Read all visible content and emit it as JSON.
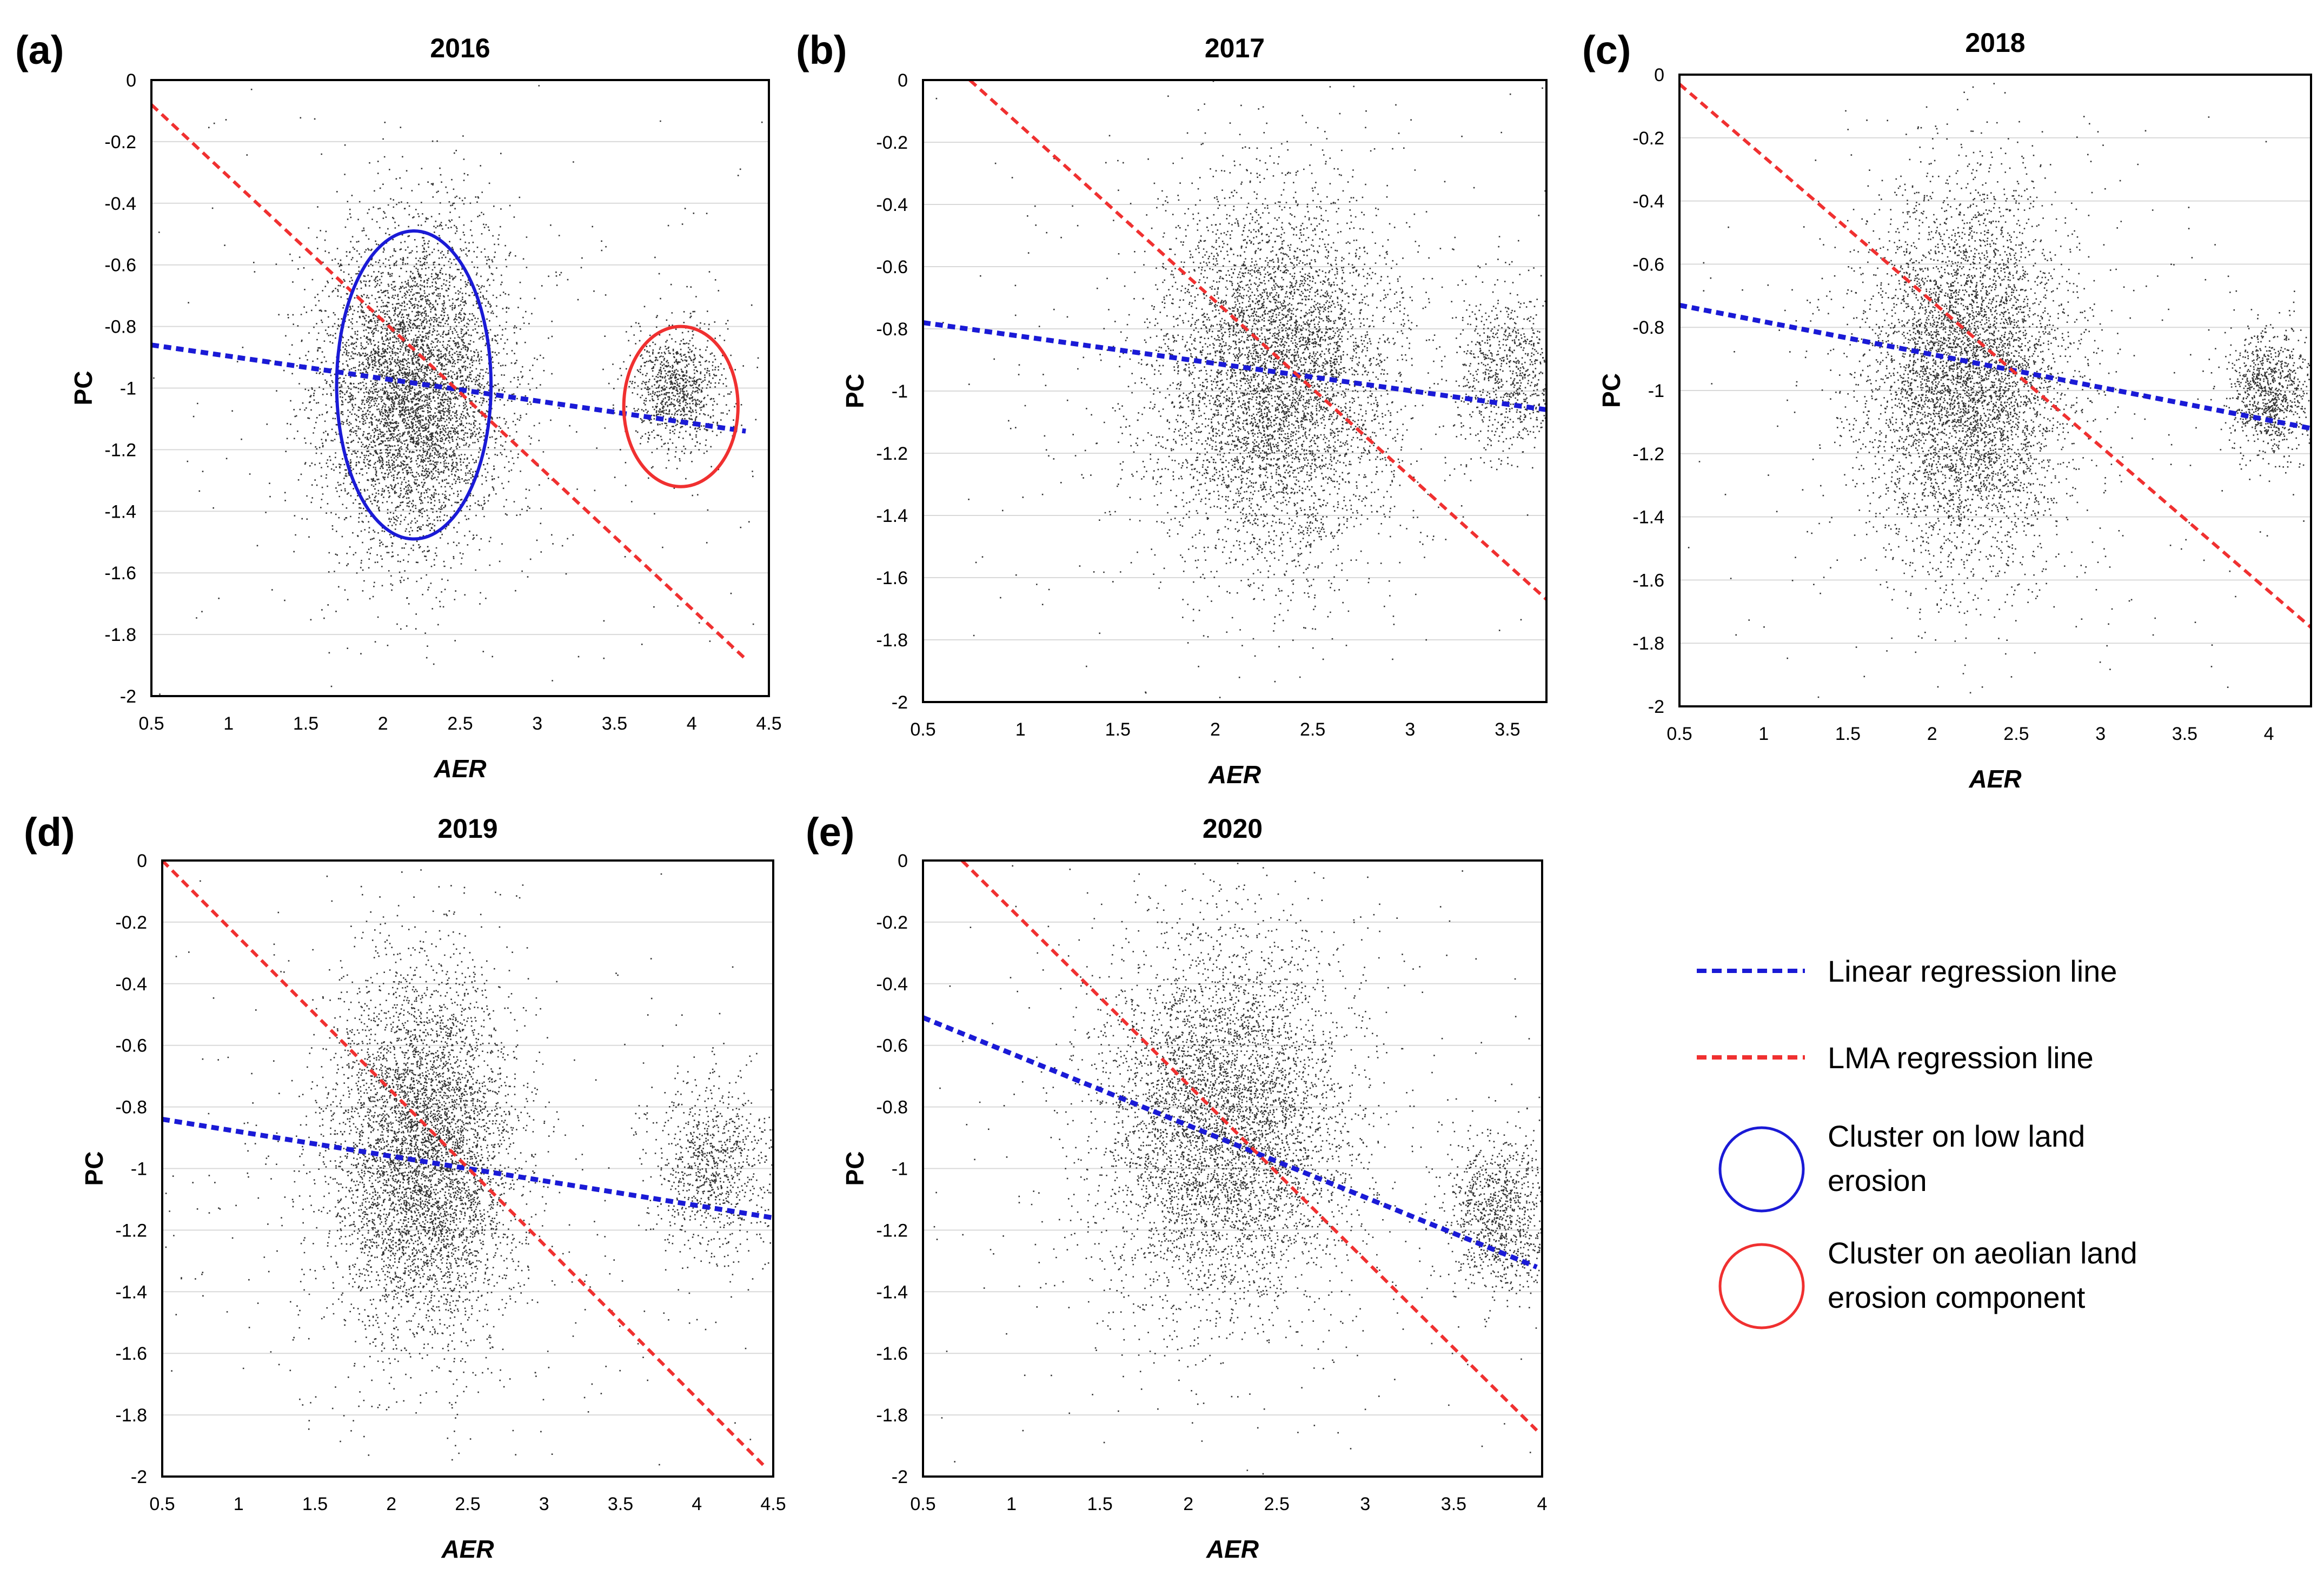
{
  "legend": {
    "items": [
      {
        "text": [
          "Linear regression line"
        ],
        "marker": "dashed-line",
        "color": "#1a1ad6"
      },
      {
        "text": [
          "LMA regression line"
        ],
        "marker": "dashed-line",
        "color": "#f03030"
      },
      {
        "text": [
          "Cluster on low land",
          "erosion"
        ],
        "marker": "circle",
        "color": "#1a1ad6"
      },
      {
        "text": [
          "Cluster on aeolian land",
          "erosion component"
        ],
        "marker": "circle",
        "color": "#f03030"
      }
    ]
  },
  "chart_data": [
    {
      "type": "scatter",
      "letter": "(a)",
      "title": "2016",
      "xlabel": "AER",
      "ylabel": "PC",
      "xlim": [
        0.5,
        4.5
      ],
      "ylim": [
        -2,
        0
      ],
      "xticks": [
        "0.5",
        "1",
        "1.5",
        "2",
        "2.5",
        "3",
        "3.5",
        "4",
        "4.5"
      ],
      "yticks": [
        "0",
        "-0.2",
        "-0.4",
        "-0.6",
        "-0.8",
        "-1",
        "-1.2",
        "-1.4",
        "-1.6",
        "-1.8",
        "-2"
      ],
      "grid": "horizontal",
      "point_color": "#333333",
      "clusters": [
        {
          "x": 2.2,
          "y": -1.0,
          "sx": 0.3,
          "sy": 0.26,
          "weight": 0.8
        },
        {
          "x": 3.9,
          "y": -1.0,
          "sx": 0.15,
          "sy": 0.1,
          "weight": 0.14
        },
        {
          "x": 2.5,
          "y": -1.0,
          "sx": 1.3,
          "sy": 0.5,
          "weight": 0.06
        }
      ],
      "lines": [
        {
          "type": "linear",
          "points": [
            [
              0.5,
              -0.86
            ],
            [
              4.35,
              -1.14
            ]
          ],
          "color": "#1a1ad6"
        },
        {
          "type": "lma",
          "points": [
            [
              0.5,
              -0.08
            ],
            [
              4.35,
              -1.88
            ]
          ],
          "color": "#f03030"
        }
      ],
      "ellipses": [
        {
          "cx": 2.2,
          "cy": -0.99,
          "rx": 0.5,
          "ry": 0.5,
          "color": "#1a1ad6"
        },
        {
          "cx": 3.93,
          "cy": -1.06,
          "rx": 0.37,
          "ry": 0.26,
          "color": "#f03030"
        }
      ]
    },
    {
      "type": "scatter",
      "letter": "(b)",
      "title": "2017",
      "xlabel": "AER",
      "ylabel": "PC",
      "xlim": [
        0.5,
        3.7
      ],
      "ylim": [
        -2,
        0
      ],
      "xticks": [
        "0.5",
        "1",
        "1.5",
        "2",
        "2.5",
        "3",
        "3.5"
      ],
      "yticks": [
        "0",
        "-0.2",
        "-0.4",
        "-0.6",
        "-0.8",
        "-1",
        "-1.2",
        "-1.4",
        "-1.6",
        "-1.8",
        "-2"
      ],
      "grid": "horizontal",
      "point_color": "#333333",
      "clusters": [
        {
          "x": 2.3,
          "y": -0.95,
          "sx": 0.3,
          "sy": 0.3,
          "weight": 0.82
        },
        {
          "x": 3.5,
          "y": -0.95,
          "sx": 0.14,
          "sy": 0.13,
          "weight": 0.12
        },
        {
          "x": 2.3,
          "y": -0.95,
          "sx": 1.1,
          "sy": 0.5,
          "weight": 0.06
        }
      ],
      "lines": [
        {
          "type": "linear",
          "points": [
            [
              0.5,
              -0.78
            ],
            [
              3.7,
              -1.06
            ]
          ],
          "color": "#1a1ad6"
        },
        {
          "type": "lma",
          "points": [
            [
              0.74,
              0.0
            ],
            [
              3.7,
              -1.67
            ]
          ],
          "color": "#f03030"
        }
      ],
      "ellipses": []
    },
    {
      "type": "scatter",
      "letter": "(c)",
      "title": "2018",
      "xlabel": "AER",
      "ylabel": "PC",
      "xlim": [
        0.5,
        4.25
      ],
      "ylim": [
        -2,
        0
      ],
      "xticks": [
        "0.5",
        "1",
        "1.5",
        "2",
        "2.5",
        "3",
        "3.5",
        "4"
      ],
      "yticks": [
        "0",
        "-0.2",
        "-0.4",
        "-0.6",
        "-0.8",
        "-1",
        "-1.2",
        "-1.4",
        "-1.6",
        "-1.8",
        "-2"
      ],
      "grid": "horizontal",
      "point_color": "#333333",
      "clusters": [
        {
          "x": 2.2,
          "y": -0.95,
          "sx": 0.3,
          "sy": 0.3,
          "weight": 0.8
        },
        {
          "x": 4.0,
          "y": -1.0,
          "sx": 0.12,
          "sy": 0.1,
          "weight": 0.14
        },
        {
          "x": 2.4,
          "y": -1.0,
          "sx": 1.1,
          "sy": 0.5,
          "weight": 0.06
        }
      ],
      "lines": [
        {
          "type": "linear",
          "points": [
            [
              0.5,
              -0.73
            ],
            [
              4.25,
              -1.12
            ]
          ],
          "color": "#1a1ad6"
        },
        {
          "type": "lma",
          "points": [
            [
              0.5,
              -0.03
            ],
            [
              4.25,
              -1.75
            ]
          ],
          "color": "#f03030"
        }
      ],
      "ellipses": []
    },
    {
      "type": "scatter",
      "letter": "(d)",
      "title": "2019",
      "xlabel": "AER",
      "ylabel": "PC",
      "xlim": [
        0.5,
        4.5
      ],
      "ylim": [
        -2,
        0
      ],
      "xticks": [
        "0.5",
        "1",
        "1.5",
        "2",
        "2.5",
        "3",
        "3.5",
        "4",
        "4.5"
      ],
      "yticks": [
        "0",
        "-0.2",
        "-0.4",
        "-0.6",
        "-0.8",
        "-1",
        "-1.2",
        "-1.4",
        "-1.6",
        "-1.8",
        "-2"
      ],
      "grid": "horizontal",
      "point_color": "#333333",
      "clusters": [
        {
          "x": 2.2,
          "y": -0.95,
          "sx": 0.3,
          "sy": 0.3,
          "weight": 0.8
        },
        {
          "x": 4.1,
          "y": -1.0,
          "sx": 0.2,
          "sy": 0.14,
          "weight": 0.14
        },
        {
          "x": 2.5,
          "y": -1.0,
          "sx": 1.3,
          "sy": 0.5,
          "weight": 0.06
        }
      ],
      "lines": [
        {
          "type": "linear",
          "points": [
            [
              0.5,
              -0.84
            ],
            [
              4.5,
              -1.16
            ]
          ],
          "color": "#1a1ad6"
        },
        {
          "type": "lma",
          "points": [
            [
              0.5,
              0.0
            ],
            [
              4.45,
              -1.97
            ]
          ],
          "color": "#f03030"
        }
      ],
      "ellipses": []
    },
    {
      "type": "scatter",
      "letter": "(e)",
      "title": "2020",
      "xlabel": "AER",
      "ylabel": "PC",
      "xlim": [
        0.5,
        4.0
      ],
      "ylim": [
        -2,
        0
      ],
      "xticks": [
        "0.5",
        "1",
        "1.5",
        "2",
        "2.5",
        "3",
        "3.5",
        "4"
      ],
      "yticks": [
        "0",
        "-0.2",
        "-0.4",
        "-0.6",
        "-0.8",
        "-1",
        "-1.2",
        "-1.4",
        "-1.6",
        "-1.8",
        "-2"
      ],
      "grid": "horizontal",
      "point_color": "#333333",
      "clusters": [
        {
          "x": 2.2,
          "y": -0.85,
          "sx": 0.35,
          "sy": 0.3,
          "weight": 0.78
        },
        {
          "x": 3.75,
          "y": -1.15,
          "sx": 0.15,
          "sy": 0.13,
          "weight": 0.15
        },
        {
          "x": 2.4,
          "y": -0.9,
          "sx": 1.1,
          "sy": 0.5,
          "weight": 0.07
        }
      ],
      "lines": [
        {
          "type": "linear",
          "points": [
            [
              0.5,
              -0.51
            ],
            [
              3.97,
              -1.32
            ]
          ],
          "color": "#1a1ad6"
        },
        {
          "type": "lma",
          "points": [
            [
              0.72,
              0.0
            ],
            [
              3.97,
              -1.85
            ]
          ],
          "color": "#f03030"
        }
      ],
      "ellipses": []
    }
  ]
}
